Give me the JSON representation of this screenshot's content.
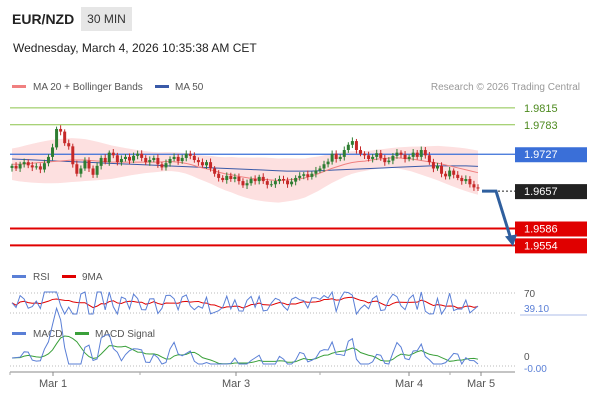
{
  "header": {
    "symbol": "EUR/NZD",
    "timeframe": "30 MIN",
    "datetime": "Wednesday, March 4, 2026 10:35:38 AM CET"
  },
  "legend": {
    "ma20_label": "MA 20 + Bollinger Bands",
    "ma50_label": "MA 50",
    "credit": "Research © 2026 Trading Central"
  },
  "colors": {
    "candle_up": "#2e7d32",
    "candle_down": "#c62828",
    "ma20": "#f08080",
    "ma50": "#3a5aa8",
    "bb_fill": "#fde0e0",
    "green_level": "#8bc34a",
    "blue_level": "#3a6fd8",
    "red_level": "#e00000",
    "pivot": "#222222",
    "arrow": "#2f5f9e",
    "rsi": "#5a7fd6",
    "rsi_ma": "#e00000",
    "macd": "#5a7fd6",
    "macd_signal": "#3aa03a"
  },
  "chart_data": [
    {
      "type": "candlestick",
      "ylim": [
        1.953,
        1.983
      ],
      "x_ticks": [
        "Mar 1",
        "Mar 3",
        "Mar 4",
        "Mar 5"
      ],
      "price_levels": [
        {
          "value": 1.9815,
          "label": "1.9815",
          "kind": "resistance"
        },
        {
          "value": 1.9783,
          "label": "1.9783",
          "kind": "resistance"
        },
        {
          "value": 1.9727,
          "label": "1.9727",
          "kind": "pivot-high"
        },
        {
          "value": 1.9657,
          "label": "1.9657",
          "kind": "pivot"
        },
        {
          "value": 1.9586,
          "label": "1.9586",
          "kind": "support"
        },
        {
          "value": 1.9554,
          "label": "1.9554",
          "kind": "support"
        }
      ],
      "close_series": [
        1.9705,
        1.97,
        1.9708,
        1.9712,
        1.9706,
        1.9702,
        1.9704,
        1.9698,
        1.971,
        1.9722,
        1.974,
        1.9775,
        1.977,
        1.9748,
        1.9742,
        1.9708,
        1.969,
        1.97,
        1.9715,
        1.97,
        1.9688,
        1.9705,
        1.972,
        1.9712,
        1.973,
        1.9725,
        1.9712,
        1.9718,
        1.9722,
        1.9715,
        1.9724,
        1.9728,
        1.972,
        1.9712,
        1.9716,
        1.972,
        1.9708,
        1.9702,
        1.971,
        1.9718,
        1.9722,
        1.9714,
        1.972,
        1.9728,
        1.9724,
        1.9716,
        1.9712,
        1.9706,
        1.9712,
        1.97,
        1.969,
        1.9682,
        1.9678,
        1.9686,
        1.968,
        1.9684,
        1.9676,
        1.9668,
        1.9672,
        1.968,
        1.9676,
        1.9684,
        1.9676,
        1.9669,
        1.967,
        1.9676,
        1.968,
        1.9677,
        1.967,
        1.9675,
        1.9682,
        1.9686,
        1.9689,
        1.9684,
        1.969,
        1.9696,
        1.97,
        1.9708,
        1.9713,
        1.9728,
        1.9718,
        1.9722,
        1.9735,
        1.9745,
        1.9752,
        1.9735,
        1.9728,
        1.9725,
        1.9718,
        1.9722,
        1.9729,
        1.972,
        1.9712,
        1.9715,
        1.9724,
        1.973,
        1.9726,
        1.9718,
        1.9722,
        1.973,
        1.9722,
        1.9735,
        1.9725,
        1.9712,
        1.97,
        1.9705,
        1.969,
        1.9685,
        1.9696,
        1.9688,
        1.9682,
        1.9676,
        1.968,
        1.967,
        1.9664,
        1.9662
      ],
      "ma20": [
        1.9708,
        1.9708,
        1.9709,
        1.971,
        1.9711,
        1.9712,
        1.9713,
        1.9714,
        1.9715,
        1.9716,
        1.9716,
        1.9716,
        1.9715,
        1.9714,
        1.9713,
        1.9712,
        1.9712,
        1.9712,
        1.9712,
        1.9712,
        1.9712,
        1.9712,
        1.9712,
        1.9713,
        1.9713,
        1.9712,
        1.971,
        1.9707,
        1.9703,
        1.97,
        1.9697,
        1.9693,
        1.969,
        1.9688,
        1.9685,
        1.9683,
        1.9681,
        1.968,
        1.9679,
        1.9678,
        1.9677,
        1.9678,
        1.9679,
        1.968,
        1.9682,
        1.9686,
        1.969,
        1.9695,
        1.97,
        1.9704,
        1.9708,
        1.9711,
        1.9713,
        1.9714,
        1.9716,
        1.9718,
        1.9719,
        1.972,
        1.972,
        1.9719,
        1.9718,
        1.9716,
        1.9714,
        1.9712,
        1.971,
        1.9707,
        1.9704,
        1.9701,
        1.9698,
        1.9695,
        1.9692
      ],
      "ma50": [
        1.9718,
        1.9717,
        1.9716,
        1.9715,
        1.9714,
        1.9713,
        1.9712,
        1.9711,
        1.971,
        1.9709,
        1.9708,
        1.9707,
        1.9706,
        1.9705,
        1.9704,
        1.9703,
        1.9702,
        1.9701,
        1.97,
        1.9699,
        1.9698,
        1.9697,
        1.9696,
        1.9695,
        1.9695,
        1.9695,
        1.9696,
        1.9697,
        1.9698,
        1.9699,
        1.97,
        1.9701,
        1.9702,
        1.9703,
        1.9704,
        1.9705,
        1.9705,
        1.9705,
        1.9705,
        1.9704
      ]
    },
    {
      "type": "line",
      "legend": [
        "RSI",
        "9MA"
      ],
      "levels": [
        {
          "value": 70,
          "label": "70"
        },
        {
          "value": 30,
          "label": ""
        }
      ],
      "last_value_label": "39.10",
      "ylim": [
        20,
        80
      ]
    },
    {
      "type": "line",
      "legend": [
        "MACD",
        "MACD Signal"
      ],
      "zero_label": "0",
      "last_value_label": "-0.00"
    }
  ]
}
